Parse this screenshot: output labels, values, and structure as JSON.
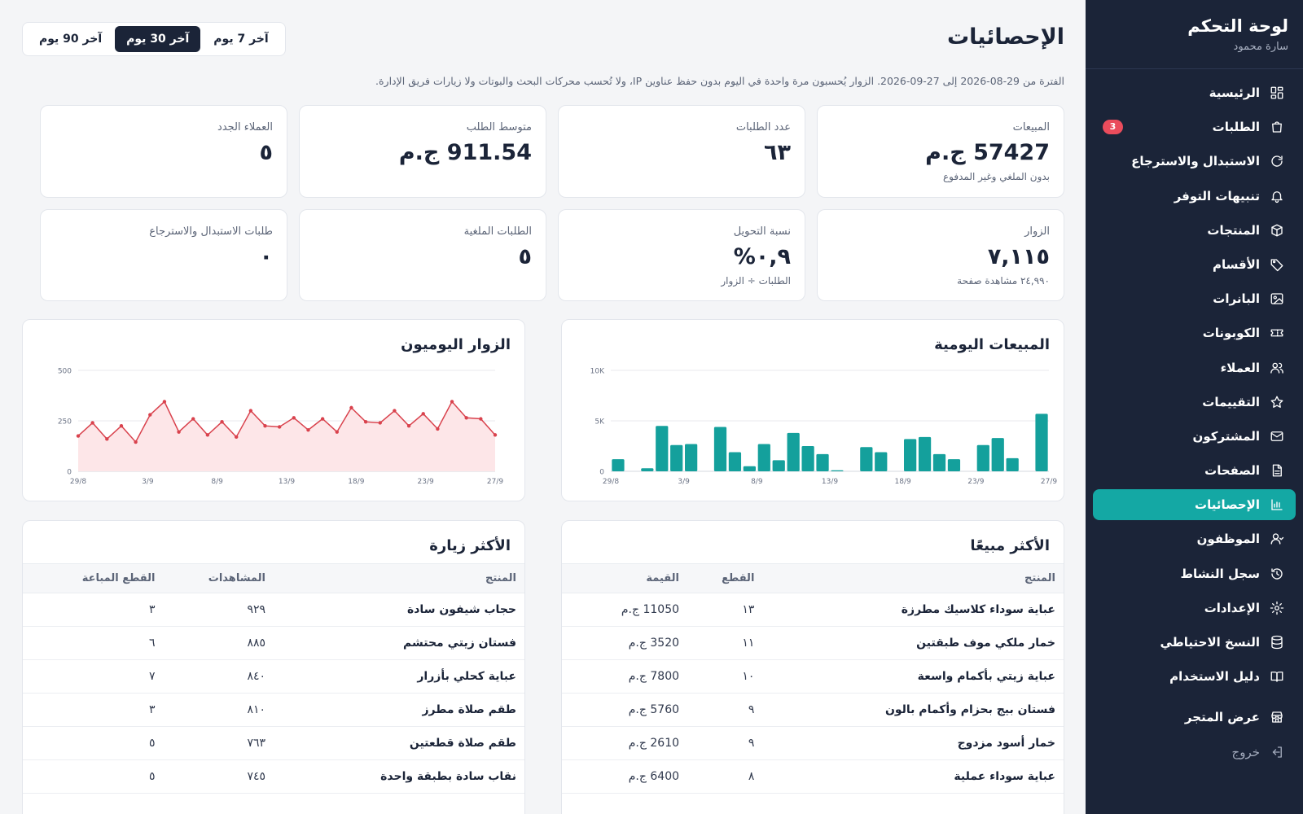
{
  "sidebar": {
    "title": "لوحة التحكم",
    "user": "سارة محمود",
    "items": [
      {
        "label": "الرئيسية",
        "icon": "grid-icon"
      },
      {
        "label": "الطلبات",
        "icon": "bag-icon",
        "badge": "3"
      },
      {
        "label": "الاستبدال والاسترجاع",
        "icon": "refresh-icon"
      },
      {
        "label": "تنبيهات التوفر",
        "icon": "bell-icon"
      },
      {
        "label": "المنتجات",
        "icon": "box-icon"
      },
      {
        "label": "الأقسام",
        "icon": "tag-icon"
      },
      {
        "label": "البانرات",
        "icon": "image-icon"
      },
      {
        "label": "الكوبونات",
        "icon": "ticket-icon"
      },
      {
        "label": "العملاء",
        "icon": "users-icon"
      },
      {
        "label": "التقييمات",
        "icon": "star-icon"
      },
      {
        "label": "المشتركون",
        "icon": "mail-icon"
      },
      {
        "label": "الصفحات",
        "icon": "document-icon"
      },
      {
        "label": "الإحصائيات",
        "icon": "bar-chart-icon",
        "active": true
      },
      {
        "label": "الموظفون",
        "icon": "user-icon"
      },
      {
        "label": "سجل النشاط",
        "icon": "history-icon"
      },
      {
        "label": "الإعدادات",
        "icon": "gear-icon"
      },
      {
        "label": "النسخ الاحتياطي",
        "icon": "database-icon"
      },
      {
        "label": "دليل الاستخدام",
        "icon": "book-icon"
      }
    ],
    "store_label": "عرض المتجر",
    "logout_label": "خروج"
  },
  "header": {
    "title": "الإحصائيات",
    "tabs": [
      "آخر 7 يوم",
      "آخر 30 يوم",
      "آخر 90 يوم"
    ],
    "active_tab": "آخر 30 يوم",
    "note": "الفترة من 29-08-2026 إلى 27-09-2026. الزوار يُحسبون مرة واحدة في اليوم بدون حفظ عناوين IP، ولا تُحسب محركات البحث والبوتات ولا زيارات فريق الإدارة."
  },
  "kpis": [
    {
      "label": "المبيعات",
      "value": "57427 ج.م",
      "sub": "بدون الملغي وغير المدفوع"
    },
    {
      "label": "عدد الطلبات",
      "value": "٦٣",
      "sub": ""
    },
    {
      "label": "متوسط الطلب",
      "value": "911.54 ج.م",
      "sub": ""
    },
    {
      "label": "العملاء الجدد",
      "value": "٥",
      "sub": ""
    },
    {
      "label": "الزوار",
      "value": "٧,١١٥",
      "sub": "٢٤,٩٩٠ مشاهدة صفحة"
    },
    {
      "label": "نسبة التحويل",
      "value": "٠,٩%",
      "sub": "الطلبات ÷ الزوار"
    },
    {
      "label": "الطلبات الملغية",
      "value": "٥",
      "sub": ""
    },
    {
      "label": "طلبات الاستبدال والاسترجاع",
      "value": "٠",
      "sub": ""
    }
  ],
  "chart_data": [
    {
      "type": "bar",
      "title": "المبيعات اليومية",
      "x_ticks": [
        "29/8",
        "3/9",
        "8/9",
        "13/9",
        "18/9",
        "23/9",
        "27/9"
      ],
      "y_ticks": [
        "0",
        "5K",
        "10K"
      ],
      "ylim": [
        0,
        10000
      ],
      "color": "#14a09c",
      "values": [
        1200,
        0,
        300,
        4500,
        2600,
        2700,
        0,
        4400,
        1900,
        500,
        2700,
        1100,
        3800,
        2500,
        1700,
        100,
        0,
        2400,
        1900,
        0,
        3200,
        3400,
        1700,
        1200,
        0,
        2600,
        3300,
        1300,
        0,
        5700
      ]
    },
    {
      "type": "line",
      "title": "الزوار اليوميون",
      "x_ticks": [
        "29/8",
        "3/9",
        "8/9",
        "13/9",
        "18/9",
        "23/9",
        "27/9"
      ],
      "y_ticks": [
        "0",
        "250",
        "500"
      ],
      "ylim": [
        0,
        500
      ],
      "color": "#d9424d",
      "fill": "#fde6e8",
      "values": [
        175,
        240,
        160,
        225,
        145,
        280,
        345,
        195,
        260,
        180,
        245,
        170,
        300,
        225,
        220,
        265,
        205,
        260,
        195,
        315,
        245,
        240,
        300,
        225,
        285,
        210,
        345,
        265,
        260,
        180
      ]
    }
  ],
  "top_selling": {
    "title": "الأكثر مبيعًا",
    "headers": [
      "المنتج",
      "القطع",
      "القيمة"
    ],
    "rows": [
      [
        "عباية سوداء كلاسيك مطرزة",
        "١٣",
        "11050 ج.م"
      ],
      [
        "خمار ملكي موف طبقتين",
        "١١",
        "3520 ج.م"
      ],
      [
        "عباية زيتي بأكمام واسعة",
        "١٠",
        "7800 ج.م"
      ],
      [
        "فستان بيج بحزام وأكمام بالون",
        "٩",
        "5760 ج.م"
      ],
      [
        "خمار أسود مزدوج",
        "٩",
        "2610 ج.م"
      ],
      [
        "عباية سوداء عملية",
        "٨",
        "6400 ج.م"
      ]
    ]
  },
  "top_visited": {
    "title": "الأكثر زيارة",
    "headers": [
      "المنتج",
      "المشاهدات",
      "القطع المباعة"
    ],
    "rows": [
      [
        "حجاب شيفون سادة",
        "٩٢٩",
        "٣"
      ],
      [
        "فستان زيتي محتشم",
        "٨٨٥",
        "٦"
      ],
      [
        "عباية كحلي بأزرار",
        "٨٤٠",
        "٧"
      ],
      [
        "طقم صلاة مطرز",
        "٨١٠",
        "٣"
      ],
      [
        "طقم صلاة قطعتين",
        "٧٦٣",
        "٥"
      ],
      [
        "نقاب سادة بطبقة واحدة",
        "٧٤٥",
        "٥"
      ]
    ]
  }
}
